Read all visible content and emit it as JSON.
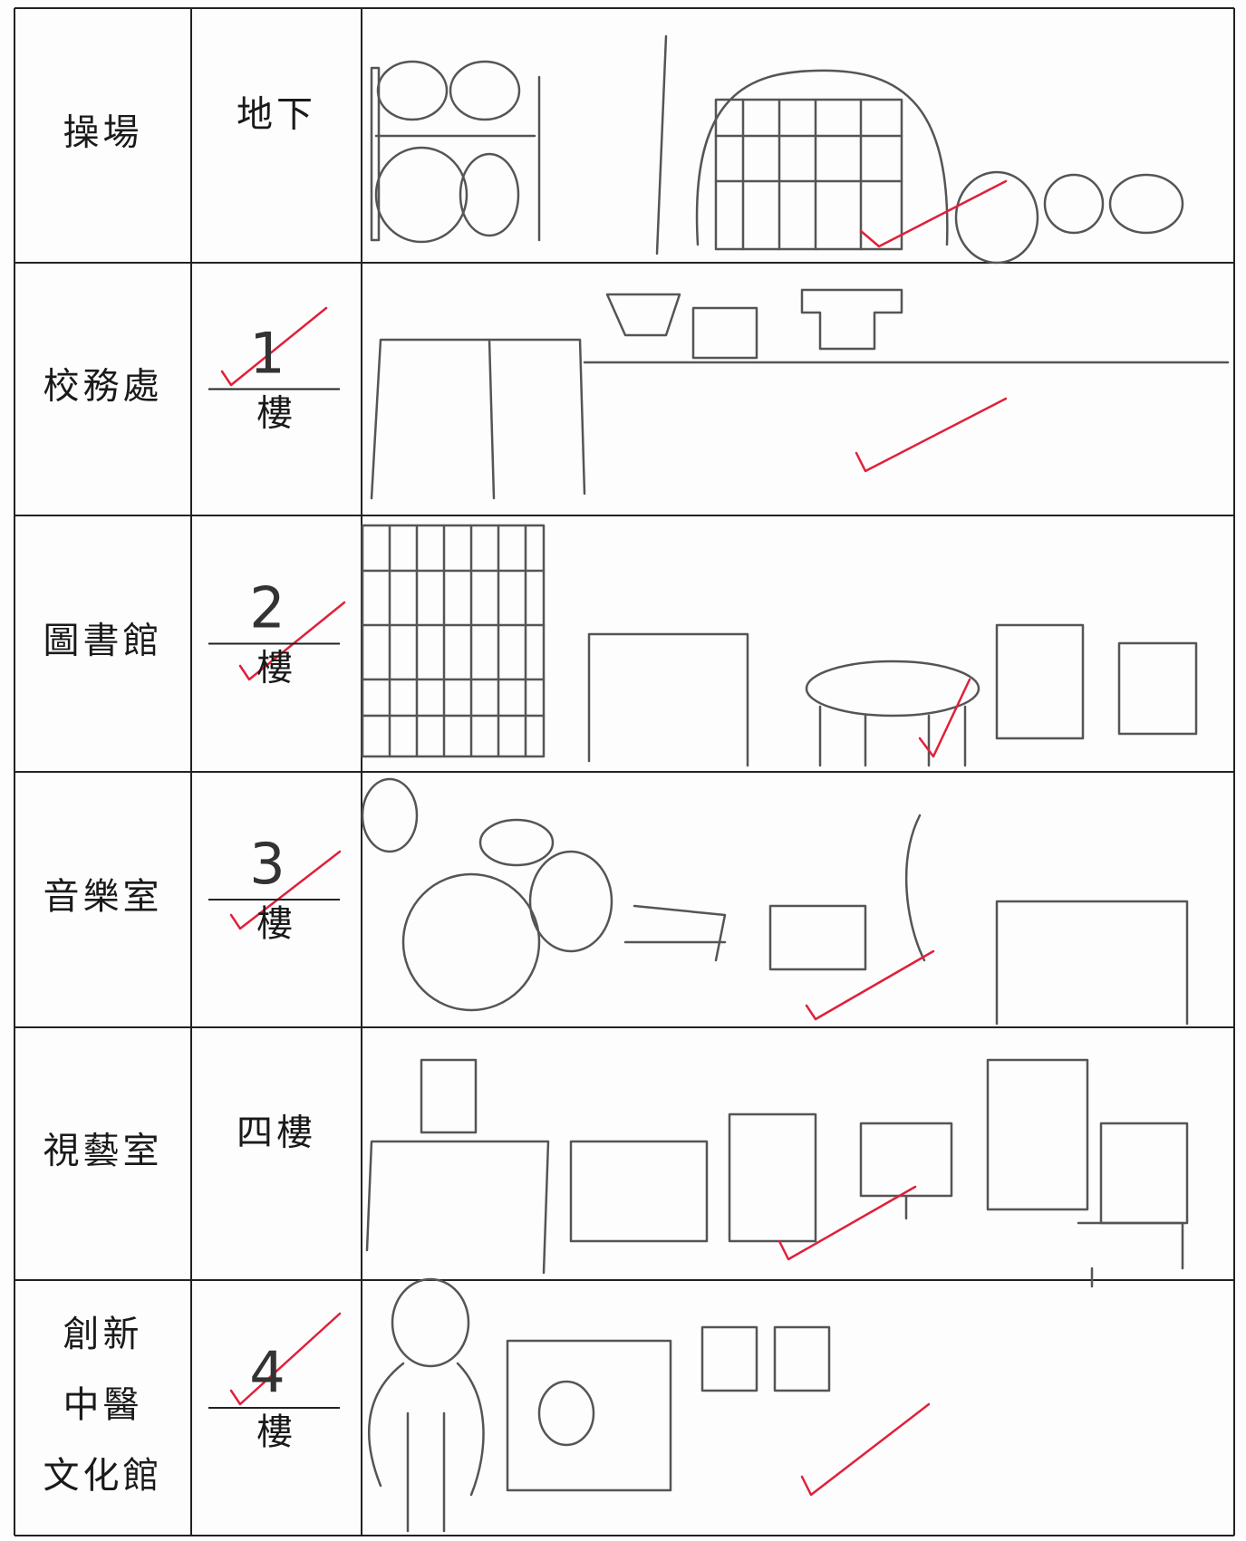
{
  "table": {
    "rows": [
      {
        "place": [
          "操場"
        ],
        "floor": "地下"
      },
      {
        "place": [
          "校務處"
        ],
        "floor_number": "1",
        "floor_unit": "樓"
      },
      {
        "place": [
          "圖書館"
        ],
        "floor_number": "2",
        "floor_unit": "樓"
      },
      {
        "place": [
          "音樂室"
        ],
        "floor_number": "3",
        "floor_unit": "樓"
      },
      {
        "place": [
          "視藝室"
        ],
        "floor": "四樓"
      },
      {
        "place": [
          "創新",
          "中醫",
          "文化館"
        ],
        "floor_number": "4",
        "floor_unit": "樓"
      }
    ]
  }
}
